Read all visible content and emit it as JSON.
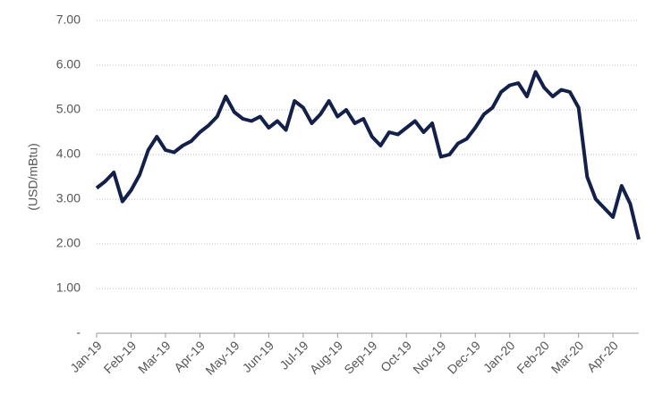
{
  "chart_data": {
    "type": "line",
    "y_label": "(USD/mBtu)",
    "series": [
      {
        "name": null,
        "color": "#13214a",
        "x": [
          0,
          0.25,
          0.5,
          0.75,
          1,
          1.25,
          1.5,
          1.75,
          2,
          2.25,
          2.5,
          2.75,
          3,
          3.25,
          3.5,
          3.75,
          4,
          4.25,
          4.5,
          4.75,
          5,
          5.25,
          5.5,
          5.75,
          6,
          6.25,
          6.5,
          6.75,
          7,
          7.25,
          7.5,
          7.75,
          8,
          8.25,
          8.5,
          8.75,
          9,
          9.25,
          9.5,
          9.75,
          10,
          10.25,
          10.5,
          10.75,
          11,
          11.25,
          11.5,
          11.75,
          12,
          12.25,
          12.5,
          12.75,
          13,
          13.25,
          13.5,
          13.75,
          14,
          14.25,
          14.5,
          14.75,
          15,
          15.25,
          15.5,
          15.75
        ],
        "values": [
          3.25,
          3.4,
          3.6,
          2.95,
          3.2,
          3.55,
          4.1,
          4.4,
          4.1,
          4.05,
          4.2,
          4.3,
          4.5,
          4.65,
          4.85,
          5.3,
          4.95,
          4.8,
          4.75,
          4.85,
          4.6,
          4.75,
          4.55,
          5.2,
          5.05,
          4.7,
          4.9,
          5.2,
          4.85,
          5.0,
          4.7,
          4.8,
          4.4,
          4.2,
          4.5,
          4.45,
          4.6,
          4.75,
          4.5,
          4.7,
          3.95,
          4.0,
          4.25,
          4.35,
          4.6,
          4.9,
          5.05,
          5.4,
          5.55,
          5.6,
          5.3,
          5.85,
          5.5,
          5.3,
          5.45,
          5.4,
          5.05,
          3.5,
          3.0,
          2.8,
          2.6,
          3.3,
          2.9,
          2.1
        ]
      }
    ],
    "xlim": [
      0,
      15.75
    ],
    "xticks": [
      {
        "value": 0,
        "label": "Jan-19"
      },
      {
        "value": 1,
        "label": "Feb-19"
      },
      {
        "value": 2,
        "label": "Mar-19"
      },
      {
        "value": 3,
        "label": "Apr-19"
      },
      {
        "value": 4,
        "label": "May-19"
      },
      {
        "value": 5,
        "label": "Jun-19"
      },
      {
        "value": 6,
        "label": "Jul-19"
      },
      {
        "value": 7,
        "label": "Aug-19"
      },
      {
        "value": 8,
        "label": "Sep-19"
      },
      {
        "value": 9,
        "label": "Oct-19"
      },
      {
        "value": 10,
        "label": "Nov-19"
      },
      {
        "value": 11,
        "label": "Dec-19"
      },
      {
        "value": 12,
        "label": "Jan-20"
      },
      {
        "value": 13,
        "label": "Feb-20"
      },
      {
        "value": 14,
        "label": "Mar-20"
      },
      {
        "value": 15,
        "label": "Apr-20"
      }
    ],
    "ylim": [
      0,
      7
    ],
    "yticks": [
      {
        "value": 0,
        "label": "-"
      },
      {
        "value": 1,
        "label": "1.00"
      },
      {
        "value": 2,
        "label": "2.00"
      },
      {
        "value": 3,
        "label": "3.00"
      },
      {
        "value": 4,
        "label": "4.00"
      },
      {
        "value": 5,
        "label": "5.00"
      },
      {
        "value": 6,
        "label": "6.00"
      },
      {
        "value": 7,
        "label": "7.00"
      }
    ],
    "grid": true
  }
}
